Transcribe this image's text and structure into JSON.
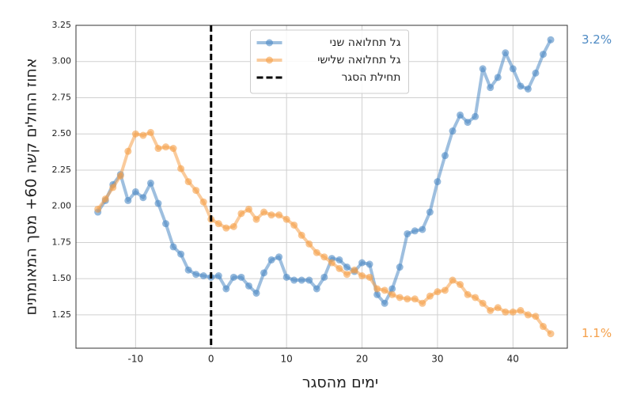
{
  "chart_data": {
    "type": "line",
    "xlabel": "ימים מהסגר",
    "ylabel": "אחוז החולים קשה 60+ מסך המאומתים",
    "x": [
      -15,
      -14,
      -13,
      -12,
      -11,
      -10,
      -9,
      -8,
      -7,
      -6,
      -5,
      -4,
      -3,
      -2,
      -1,
      0,
      1,
      2,
      3,
      4,
      5,
      6,
      7,
      8,
      9,
      10,
      11,
      12,
      13,
      14,
      15,
      16,
      17,
      18,
      19,
      20,
      21,
      22,
      23,
      24,
      25,
      26,
      27,
      28,
      29,
      30,
      31,
      32,
      33,
      34,
      35,
      36,
      37,
      38,
      39,
      40,
      41,
      42,
      43,
      44,
      45
    ],
    "series": [
      {
        "name": "גל תחלואה שני",
        "color": "#4f8bc4",
        "end_label": "3.2%",
        "values": [
          1.96,
          2.04,
          2.15,
          2.22,
          2.04,
          2.1,
          2.06,
          2.16,
          2.02,
          1.88,
          1.72,
          1.67,
          1.56,
          1.53,
          1.52,
          1.51,
          1.52,
          1.43,
          1.51,
          1.51,
          1.45,
          1.4,
          1.54,
          1.63,
          1.65,
          1.51,
          1.49,
          1.49,
          1.49,
          1.43,
          1.51,
          1.64,
          1.63,
          1.58,
          1.55,
          1.61,
          1.6,
          1.39,
          1.33,
          1.43,
          1.58,
          1.81,
          1.83,
          1.84,
          1.96,
          2.17,
          2.35,
          2.52,
          2.63,
          2.58,
          2.62,
          2.95,
          2.82,
          2.89,
          3.06,
          2.95,
          2.83,
          2.81,
          2.92,
          3.05,
          3.15
        ]
      },
      {
        "name": "גל תחלואה שלישי",
        "color": "#f5a04a",
        "end_label": "1.1%",
        "values": [
          1.98,
          2.05,
          2.13,
          2.21,
          2.38,
          2.5,
          2.49,
          2.51,
          2.4,
          2.41,
          2.4,
          2.26,
          2.17,
          2.11,
          2.03,
          1.91,
          1.88,
          1.85,
          1.86,
          1.95,
          1.98,
          1.91,
          1.96,
          1.94,
          1.94,
          1.91,
          1.87,
          1.8,
          1.74,
          1.68,
          1.65,
          1.61,
          1.57,
          1.53,
          1.56,
          1.52,
          1.51,
          1.43,
          1.42,
          1.39,
          1.37,
          1.36,
          1.36,
          1.33,
          1.38,
          1.41,
          1.42,
          1.49,
          1.46,
          1.39,
          1.37,
          1.33,
          1.28,
          1.3,
          1.27,
          1.27,
          1.28,
          1.25,
          1.24,
          1.17,
          1.12
        ]
      }
    ],
    "vline": {
      "x": 0,
      "name": "תחילת הסגר",
      "color": "#000000"
    },
    "xlim": [
      -17.9,
      47.2
    ],
    "ylim": [
      1.02,
      3.25
    ],
    "xticks": [
      -10,
      0,
      10,
      20,
      30,
      40
    ],
    "yticks": [
      1.25,
      {
        "value": 1.5,
        "label": "1.50"
      },
      1.75,
      {
        "value": 2,
        "label": "2.00"
      },
      2.25,
      {
        "value": 2.5,
        "label": "2.50"
      },
      2.75,
      {
        "value": 3,
        "label": "3.00"
      },
      3.25
    ],
    "grid": true,
    "legend": "upper center"
  }
}
